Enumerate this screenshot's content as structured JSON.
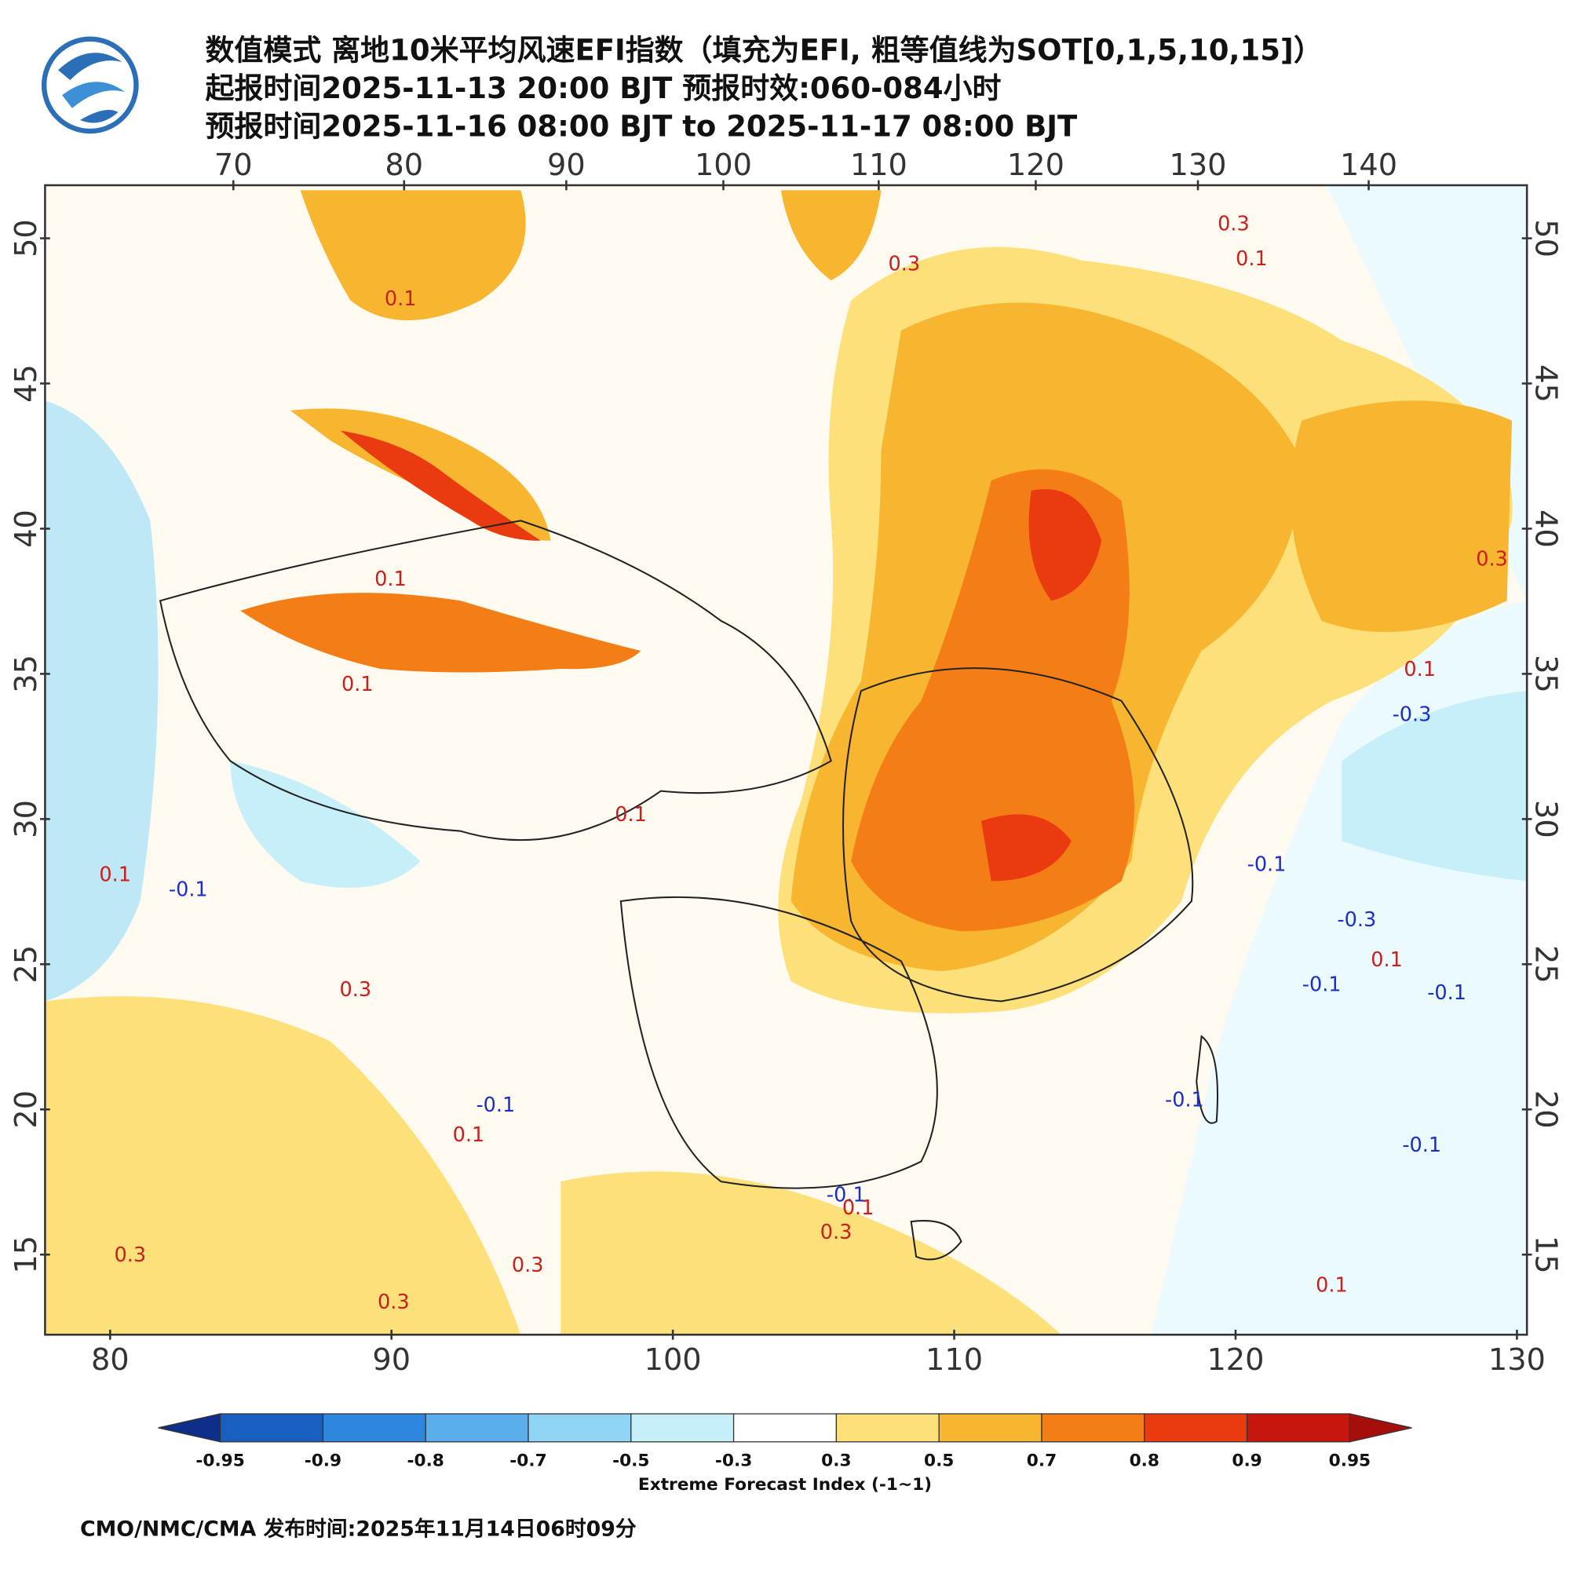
{
  "header": {
    "title": "数值模式 离地10米平均风速EFI指数（填充为EFI, 粗等值线为SOT[0,1,5,10,15]）",
    "line2": "起报时间2025-11-13 20:00 BJT 预报时效:060-084小时",
    "line3": "预报时间2025-11-16 08:00 BJT to 2025-11-17 08:00 BJT"
  },
  "map": {
    "top_lon_ticks": [
      70,
      80,
      90,
      100,
      110,
      120,
      130,
      140
    ],
    "bottom_lon_ticks": [
      80,
      90,
      100,
      110,
      120,
      130
    ],
    "lat_ticks": [
      50,
      45,
      40,
      35,
      30,
      25,
      20,
      15
    ],
    "contour_labels": [
      "0.1",
      "0.1",
      "0.1",
      "0.3",
      "0.1",
      "-0.1",
      "0.3",
      "0.3",
      "0.3",
      "0.1",
      "-0.1",
      "-0.1",
      "0.1",
      "0.3",
      "0.1",
      "0.3",
      "0.3",
      "0.1",
      "0.3",
      "0.1",
      "-0.3",
      "-0.1",
      "-0.3",
      "0.1",
      "-0.1",
      "-0.1",
      "-0.1",
      "-0.1",
      "0.1"
    ]
  },
  "colorbar": {
    "ticks": [
      -0.95,
      -0.9,
      -0.8,
      -0.7,
      -0.5,
      -0.3,
      0.3,
      0.5,
      0.7,
      0.8,
      0.9,
      0.95
    ],
    "colors": [
      "#0d2f8a",
      "#1a5fc0",
      "#2e86de",
      "#5aaeee",
      "#8fd3f5",
      "#c7eff9",
      "#ffffff",
      "#fde07a",
      "#f8b530",
      "#f47d16",
      "#ea3a10",
      "#c8150d",
      "#a50f0a"
    ],
    "label": "Extreme Forecast Index (-1~1)"
  },
  "footer": "CMO/NMC/CMA 发布时间:2025年11月14日06时09分"
}
